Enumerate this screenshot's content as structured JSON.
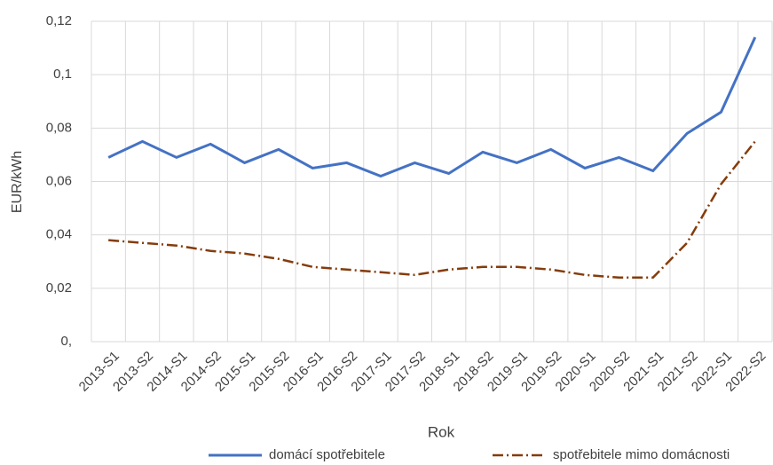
{
  "chart_data": {
    "type": "line",
    "x_label": "Rok",
    "y_label": "EUR/kWh",
    "categories": [
      "2013-S1",
      "2013-S2",
      "2014-S1",
      "2014-S2",
      "2015-S1",
      "2015-S2",
      "2016-S1",
      "2016-S2",
      "2017-S1",
      "2017-S2",
      "2018-S1",
      "2018-S2",
      "2019-S1",
      "2019-S2",
      "2020-S1",
      "2020-S2",
      "2021-S1",
      "2021-S2",
      "2022-S1",
      "2022-S2"
    ],
    "series": [
      {
        "name": "domácí spotřebitele",
        "color": "#4472c4",
        "style": "solid",
        "values": [
          0.069,
          0.075,
          0.069,
          0.074,
          0.067,
          0.072,
          0.065,
          0.067,
          0.062,
          0.067,
          0.063,
          0.071,
          0.067,
          0.072,
          0.065,
          0.069,
          0.064,
          0.078,
          0.086,
          0.114
        ]
      },
      {
        "name": "spotřebitele mimo domácnosti",
        "color": "#843c0c",
        "style": "dashdot",
        "values": [
          0.038,
          0.037,
          0.036,
          0.034,
          0.033,
          0.031,
          0.028,
          0.027,
          0.026,
          0.025,
          0.027,
          0.028,
          0.028,
          0.027,
          0.025,
          0.024,
          0.024,
          0.037,
          0.059,
          0.075
        ]
      }
    ],
    "ylim": [
      0,
      0.12
    ],
    "yticks": [
      {
        "value": 0,
        "label": "0,"
      },
      {
        "value": 0.02,
        "label": "0,02"
      },
      {
        "value": 0.04,
        "label": "0,04"
      },
      {
        "value": 0.06,
        "label": "0,06"
      },
      {
        "value": 0.08,
        "label": "0,08"
      },
      {
        "value": 0.1,
        "label": "0,1"
      },
      {
        "value": 0.12,
        "label": "0,12"
      }
    ],
    "grid": true,
    "legend": "bottom"
  }
}
